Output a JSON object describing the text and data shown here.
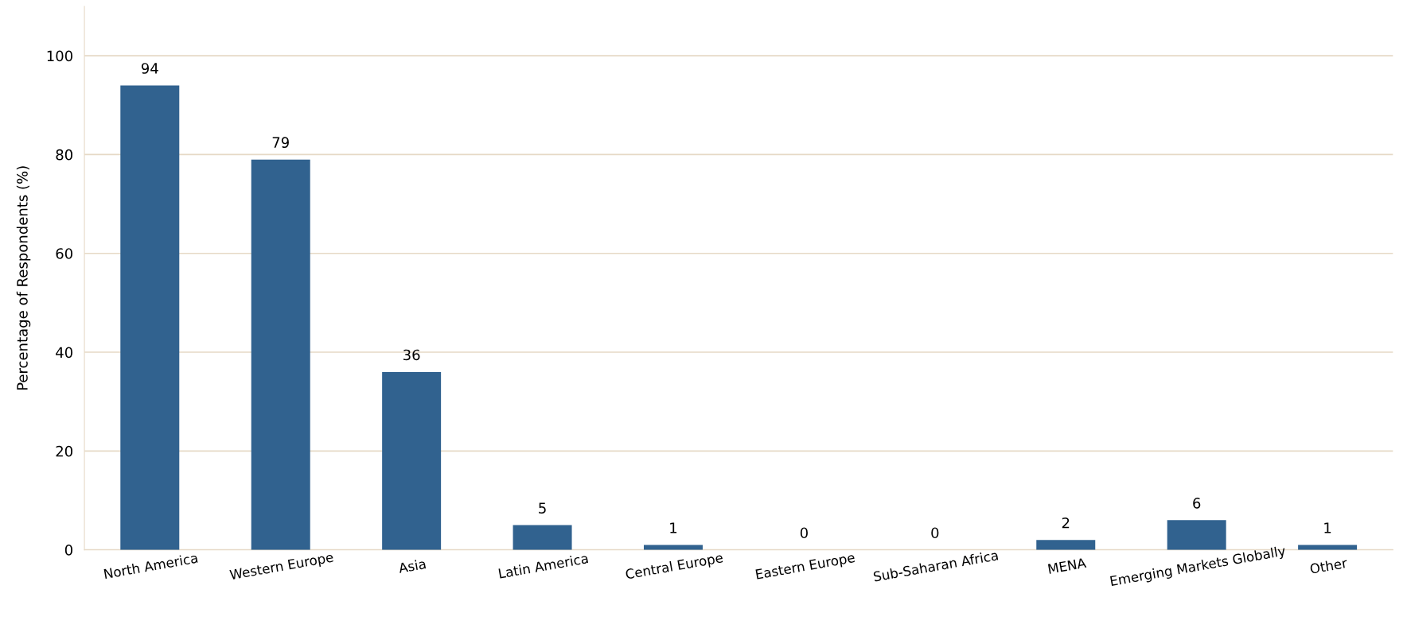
{
  "chart_data": {
    "type": "bar",
    "ylabel": "Percentage of Respondents (%)",
    "categories": [
      "North America",
      "Western Europe",
      "Asia",
      "Latin America",
      "Central Europe",
      "Eastern Europe",
      "Sub-Saharan Africa",
      "MENA",
      "Emerging Markets Globally",
      "Other"
    ],
    "values": [
      94,
      79,
      36,
      5,
      1,
      0,
      0,
      2,
      6,
      1
    ],
    "color": "#31628f",
    "ylim": [
      0,
      110
    ],
    "yticks": [
      0,
      20,
      40,
      60,
      80,
      100
    ],
    "grid": "y",
    "data_labels": true
  }
}
